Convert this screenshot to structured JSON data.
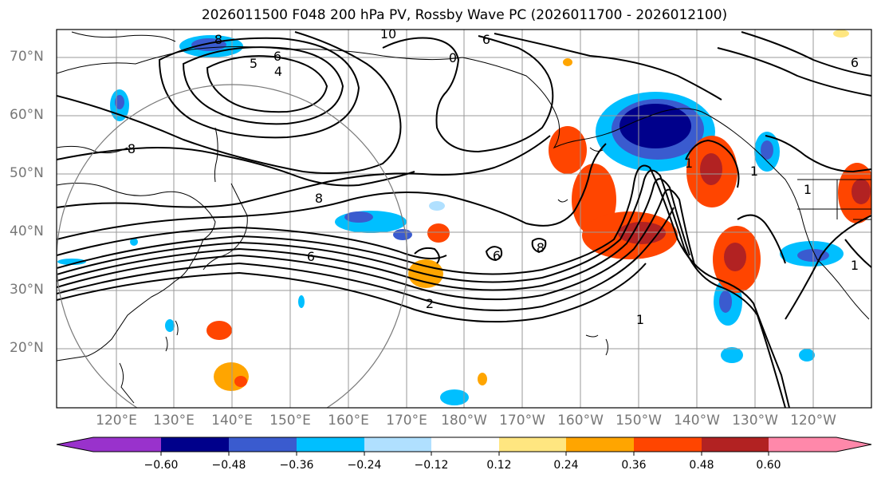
{
  "title": "2026011500 F048 200 hPa PV, Rossby Wave PC (2026011700 - 2026012100)",
  "lat_labels": [
    "70°N",
    "60°N",
    "50°N",
    "40°N",
    "30°N",
    "20°N"
  ],
  "lon_labels": [
    "120°E",
    "130°E",
    "140°E",
    "150°E",
    "160°E",
    "170°E",
    "180°W",
    "170°W",
    "160°W",
    "150°W",
    "140°W",
    "130°W",
    "120°W"
  ],
  "contour_labels": [
    "8",
    "6",
    "5",
    "4",
    "10",
    "6",
    "0",
    "8",
    "8",
    "6",
    "2",
    "1",
    "6",
    "8",
    "1",
    "1",
    "1",
    "1",
    "6"
  ],
  "colorbar": {
    "tick_labels": [
      "−0.60",
      "−0.48",
      "−0.36",
      "−0.24",
      "−0.12",
      "0.12",
      "0.24",
      "0.36",
      "0.48",
      "0.60"
    ],
    "colors": [
      "#9932cc",
      "#00008b",
      "#3a5bcf",
      "#00bfff",
      "#b0e0ff",
      "#ffffff",
      "#ffe680",
      "#ffa500",
      "#ff4500",
      "#b22222",
      "#ff88aa"
    ]
  },
  "colors": {
    "contour": "#000000",
    "grid": "#9a9a9a",
    "coast": "#000000",
    "circle": "#7a7a7a"
  }
}
